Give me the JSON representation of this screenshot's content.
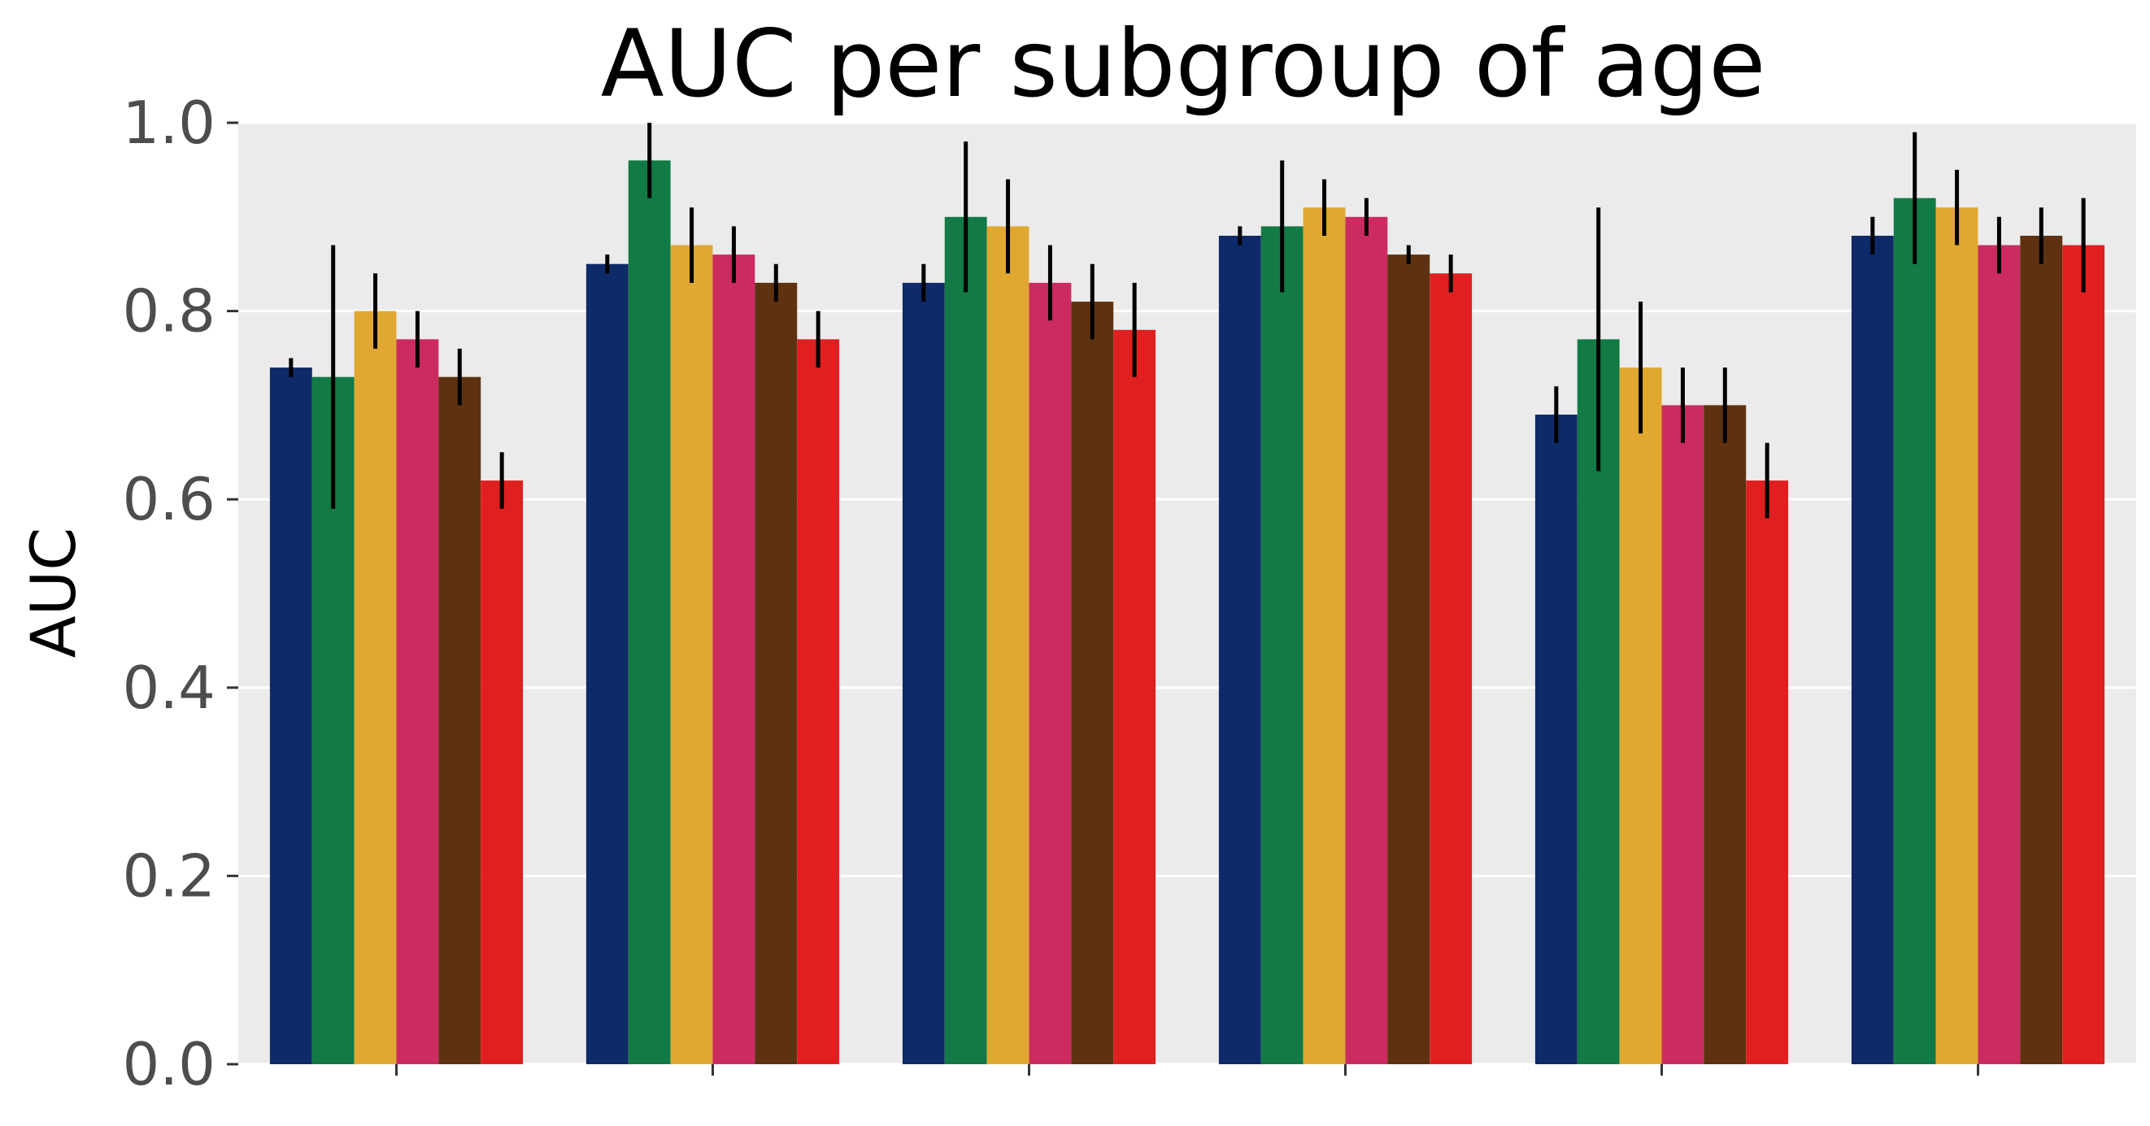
{
  "chart_data": {
    "type": "bar",
    "title": "AUC per subgroup of age",
    "xlabel": "",
    "ylabel": "AUC",
    "ylim": [
      0,
      1.0
    ],
    "yticks": [
      "0.0",
      "0.2",
      "0.4",
      "0.6",
      "0.8",
      "1.0"
    ],
    "grid": true,
    "legend": "none",
    "background": "#ebebeb",
    "groups": 6,
    "series": [
      {
        "color": "#0f2a68",
        "values": [
          0.74,
          0.85,
          0.83,
          0.88,
          0.69,
          0.88
        ],
        "err": [
          0.01,
          0.01,
          0.02,
          0.01,
          0.03,
          0.02
        ]
      },
      {
        "color": "#127a45",
        "values": [
          0.73,
          0.96,
          0.9,
          0.89,
          0.77,
          0.92
        ],
        "err": [
          0.14,
          0.04,
          0.08,
          0.07,
          0.14,
          0.07
        ]
      },
      {
        "color": "#e0a830",
        "values": [
          0.8,
          0.87,
          0.89,
          0.91,
          0.74,
          0.91
        ],
        "err": [
          0.04,
          0.04,
          0.05,
          0.03,
          0.07,
          0.04
        ]
      },
      {
        "color": "#cc2b62",
        "values": [
          0.77,
          0.86,
          0.83,
          0.9,
          0.7,
          0.87
        ],
        "err": [
          0.03,
          0.03,
          0.04,
          0.02,
          0.04,
          0.03
        ]
      },
      {
        "color": "#5e3210",
        "values": [
          0.73,
          0.83,
          0.81,
          0.86,
          0.7,
          0.88
        ],
        "err": [
          0.03,
          0.02,
          0.04,
          0.01,
          0.04,
          0.03
        ]
      },
      {
        "color": "#e02020",
        "values": [
          0.62,
          0.77,
          0.78,
          0.84,
          0.62,
          0.87
        ],
        "err": [
          0.03,
          0.03,
          0.05,
          0.02,
          0.04,
          0.05
        ]
      }
    ]
  }
}
